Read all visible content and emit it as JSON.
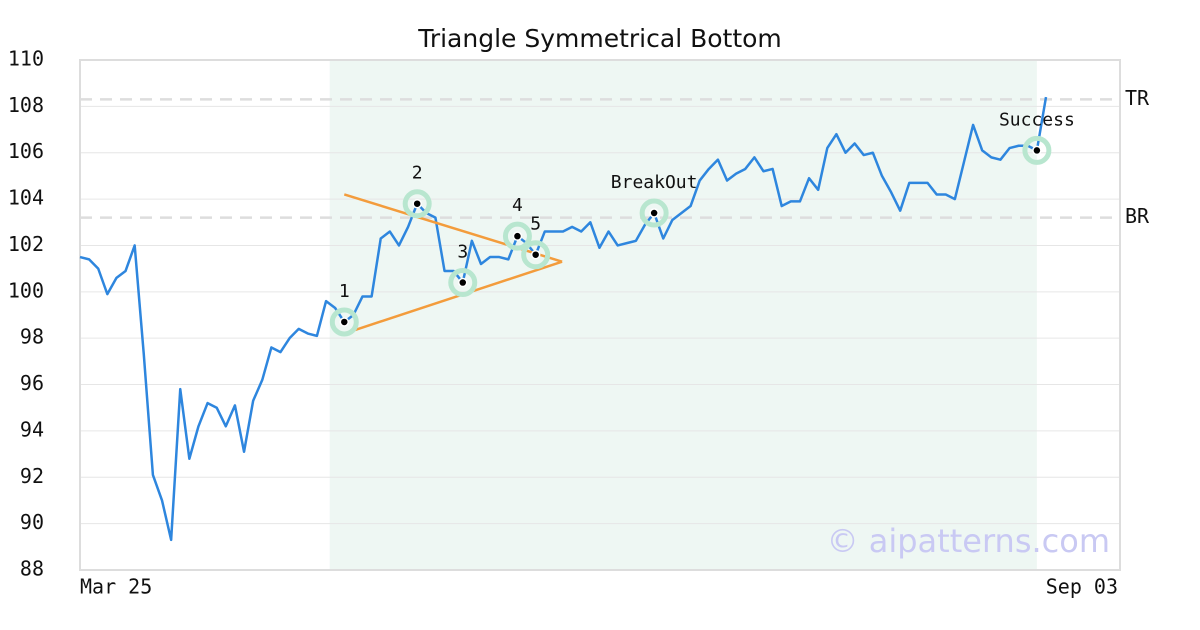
{
  "chart_data": {
    "type": "line",
    "title": "Triangle Symmetrical Bottom",
    "categories": [
      "Mar 25",
      null,
      null,
      null,
      null,
      null,
      null,
      null,
      null,
      null,
      null,
      null,
      null,
      null,
      null,
      null,
      null,
      null,
      null,
      null,
      null,
      null,
      null,
      null,
      null,
      null,
      null,
      null,
      null,
      null,
      null,
      null,
      null,
      null,
      null,
      null,
      null,
      null,
      null,
      null,
      null,
      null,
      null,
      null,
      null,
      null,
      null,
      null,
      null,
      null,
      null,
      null,
      null,
      null,
      null,
      null,
      null,
      null,
      null,
      null,
      null,
      null,
      null,
      null,
      null,
      null,
      null,
      null,
      null,
      null,
      null,
      null,
      null,
      null,
      null,
      null,
      null,
      null,
      null,
      null,
      null,
      null,
      null,
      null,
      null,
      null,
      null,
      null,
      null,
      null,
      null,
      null,
      null,
      null,
      null,
      null,
      null,
      null,
      null,
      null,
      null,
      null,
      null,
      null,
      null,
      null,
      "Sep 03"
    ],
    "series": [
      {
        "color": "#2e86de",
        "values": [
          101.5,
          101.4,
          101.0,
          99.9,
          100.6,
          100.9,
          102.0,
          97.3,
          92.1,
          91.0,
          89.3,
          95.8,
          92.8,
          94.2,
          95.2,
          95.0,
          94.2,
          95.1,
          93.1,
          95.3,
          96.2,
          97.6,
          97.4,
          98.0,
          98.4,
          98.2,
          98.1,
          99.6,
          99.3,
          98.7,
          99.0,
          99.8,
          99.8,
          102.3,
          102.6,
          102.0,
          102.8,
          103.8,
          103.4,
          103.2,
          100.9,
          100.9,
          100.4,
          102.2,
          101.2,
          101.5,
          101.5,
          101.4,
          102.4,
          102.1,
          101.6,
          102.6,
          102.6,
          102.6,
          102.8,
          102.6,
          103.0,
          101.9,
          102.6,
          102.0,
          102.1,
          102.2,
          102.9,
          103.4,
          102.3,
          103.1,
          103.4,
          103.7,
          104.8,
          105.3,
          105.7,
          104.8,
          105.1,
          105.3,
          105.8,
          105.2,
          105.3,
          103.7,
          103.9,
          103.9,
          104.9,
          104.4,
          106.2,
          106.8,
          106.0,
          106.4,
          105.9,
          106.0,
          105.0,
          104.3,
          103.5,
          104.7,
          104.7,
          104.7,
          104.2,
          104.2,
          104.0,
          105.6,
          107.2,
          106.1,
          105.8,
          105.7,
          106.2,
          106.3,
          106.3,
          106.1,
          108.4
        ]
      }
    ],
    "ylim": [
      88,
      110
    ],
    "yticks": [
      88,
      90,
      92,
      94,
      96,
      98,
      100,
      102,
      104,
      106,
      108,
      110
    ],
    "grid": true,
    "shade_range": [
      27.4,
      105
    ],
    "shade_color": "#eef7f3",
    "points": [
      {
        "label": "1",
        "index": 29,
        "value": 98.7
      },
      {
        "label": "2",
        "index": 37,
        "value": 103.8
      },
      {
        "label": "3",
        "index": 42,
        "value": 100.4
      },
      {
        "label": "4",
        "index": 48,
        "value": 102.4
      },
      {
        "label": "5",
        "index": 50,
        "value": 101.6
      },
      {
        "label": "BreakOut",
        "index": 63,
        "value": 103.4
      },
      {
        "label": "Success",
        "index": 105,
        "value": 106.1
      }
    ],
    "trendlines": [
      {
        "color": "#f39c3c",
        "x": [
          29,
          52.9
        ],
        "y": [
          104.2,
          101.3
        ]
      },
      {
        "color": "#f39c3c",
        "x": [
          29,
          52.9
        ],
        "y": [
          98.2,
          101.3
        ]
      }
    ],
    "hlines": [
      {
        "label": "TR",
        "value": 108.3
      },
      {
        "label": "BR",
        "value": 103.2
      }
    ],
    "watermark": "© aipatterns.com"
  }
}
